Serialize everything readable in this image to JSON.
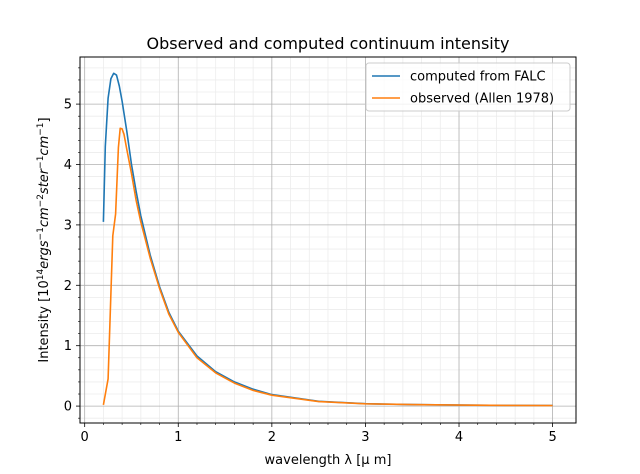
{
  "chart_data": {
    "type": "line",
    "title": "Observed and computed continuum intensity",
    "xlabel": "wavelength λ  [μ m]",
    "ylabel": {
      "prefix": "Intensity [10",
      "exp": "14",
      "unit_text": "ergs",
      "parts": [
        {
          "base": "ergs",
          "exp": "−1"
        },
        {
          "base": "cm",
          "exp": "−2"
        },
        {
          "base": "ster",
          "exp": "−1"
        },
        {
          "base": "cm",
          "exp": "−1"
        }
      ],
      "suffix": "]"
    },
    "xlim": [
      -0.05,
      5.25
    ],
    "ylim": [
      -0.28,
      5.78
    ],
    "xticks": [
      "0",
      "1",
      "2",
      "3",
      "4",
      "5"
    ],
    "yticks": [
      "0",
      "1",
      "2",
      "3",
      "4",
      "5"
    ],
    "grid": true,
    "minor_grid": true,
    "legend_position": "top-right",
    "series": [
      {
        "name": "computed from FALC",
        "color": "#1f77b4",
        "x": [
          0.2,
          0.22,
          0.25,
          0.28,
          0.31,
          0.34,
          0.37,
          0.4,
          0.45,
          0.5,
          0.55,
          0.6,
          0.7,
          0.8,
          0.9,
          1.0,
          1.2,
          1.4,
          1.6,
          1.8,
          2.0,
          2.5,
          3.0,
          3.5,
          4.0,
          4.5,
          5.0
        ],
        "y": [
          3.05,
          4.3,
          5.1,
          5.42,
          5.51,
          5.48,
          5.3,
          5.05,
          4.55,
          4.0,
          3.55,
          3.15,
          2.5,
          1.98,
          1.55,
          1.24,
          0.83,
          0.57,
          0.4,
          0.28,
          0.19,
          0.08,
          0.04,
          0.025,
          0.017,
          0.012,
          0.009
        ]
      },
      {
        "name": "observed (Allen 1978)",
        "color": "#ff7f0e",
        "x": [
          0.2,
          0.25,
          0.3,
          0.33,
          0.36,
          0.38,
          0.4,
          0.42,
          0.45,
          0.5,
          0.55,
          0.6,
          0.7,
          0.8,
          0.9,
          1.0,
          1.2,
          1.4,
          1.6,
          1.8,
          2.0,
          2.5,
          3.0,
          3.5,
          4.0,
          4.5,
          5.0
        ],
        "y": [
          0.02,
          0.45,
          2.82,
          3.18,
          4.28,
          4.6,
          4.59,
          4.5,
          4.25,
          3.85,
          3.4,
          3.05,
          2.45,
          1.95,
          1.52,
          1.22,
          0.8,
          0.55,
          0.38,
          0.26,
          0.18,
          0.075,
          0.038,
          0.024,
          0.016,
          0.011,
          0.008
        ]
      }
    ]
  }
}
